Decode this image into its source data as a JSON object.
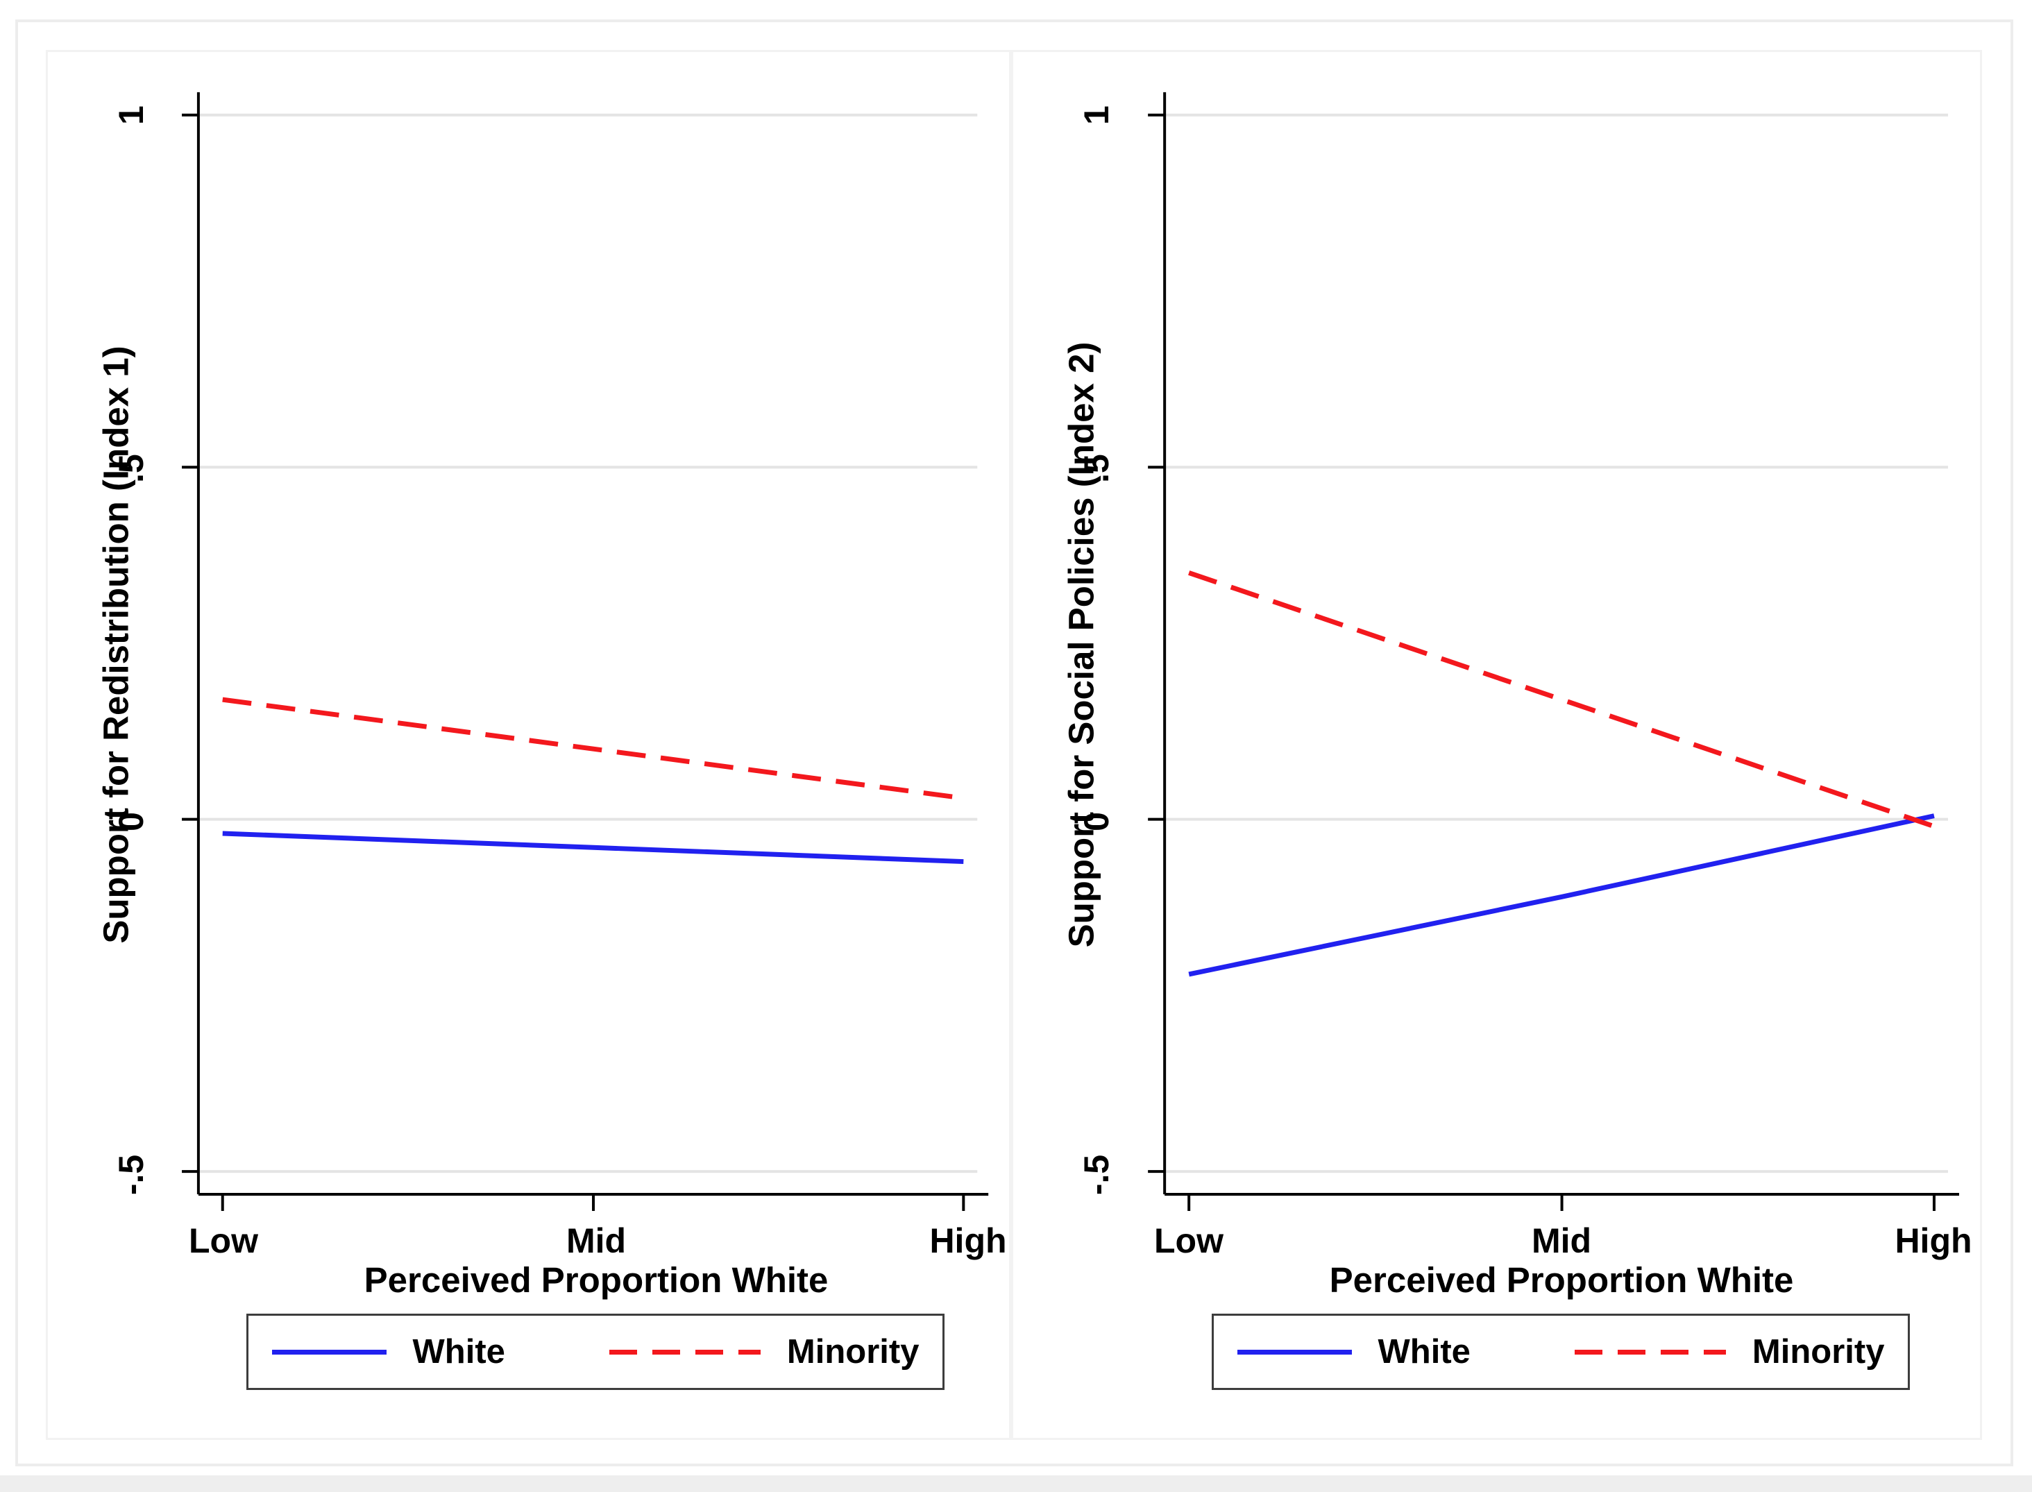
{
  "figure": {
    "background": "#ffffff",
    "outer_border_color": "#ededed",
    "panel_border_color": "#f2f2f2",
    "page_strip_color": "#eeeeee"
  },
  "colors": {
    "axis": "#000000",
    "gridline": "#e4e4e4",
    "text": "#000000",
    "legend_border": "#3d3d3d",
    "white_series": "#2121ef",
    "minority_series": "#f3181d"
  },
  "chart_data": [
    {
      "type": "line",
      "panel": "left",
      "title": "",
      "ylabel": "Support for Redistribution (Index 1)",
      "xlabel": "Perceived Proportion White",
      "categories": [
        "Low",
        "Mid",
        "High"
      ],
      "yticks": [
        {
          "value": 1,
          "label": "1"
        },
        {
          "value": 0.5,
          "label": ".5"
        },
        {
          "value": 0,
          "label": "0"
        },
        {
          "value": -0.5,
          "label": "-.5"
        }
      ],
      "ylim": [
        -0.55,
        1.05
      ],
      "grid": "horizontal-only",
      "legend_position": "bottom-center",
      "series": [
        {
          "name": "White",
          "style": "solid",
          "color": "#2121ef",
          "values": [
            -0.02,
            -0.04,
            -0.06
          ]
        },
        {
          "name": "Minority",
          "style": "dashed",
          "color": "#f3181d",
          "values": [
            0.17,
            0.1,
            0.03
          ]
        }
      ]
    },
    {
      "type": "line",
      "panel": "right",
      "title": "",
      "ylabel": "Support for Social Policies (Index 2)",
      "xlabel": "Perceived Proportion White",
      "categories": [
        "Low",
        "Mid",
        "High"
      ],
      "yticks": [
        {
          "value": 1,
          "label": "1"
        },
        {
          "value": 0.5,
          "label": ".5"
        },
        {
          "value": 0,
          "label": "0"
        },
        {
          "value": -0.5,
          "label": "-.5"
        }
      ],
      "ylim": [
        -0.55,
        1.05
      ],
      "grid": "horizontal-only",
      "legend_position": "bottom-center",
      "series": [
        {
          "name": "White",
          "style": "solid",
          "color": "#2121ef",
          "values": [
            -0.22,
            -0.11,
            0.005
          ]
        },
        {
          "name": "Minority",
          "style": "dashed",
          "color": "#f3181d",
          "values": [
            0.35,
            0.17,
            -0.01
          ]
        }
      ]
    }
  ]
}
